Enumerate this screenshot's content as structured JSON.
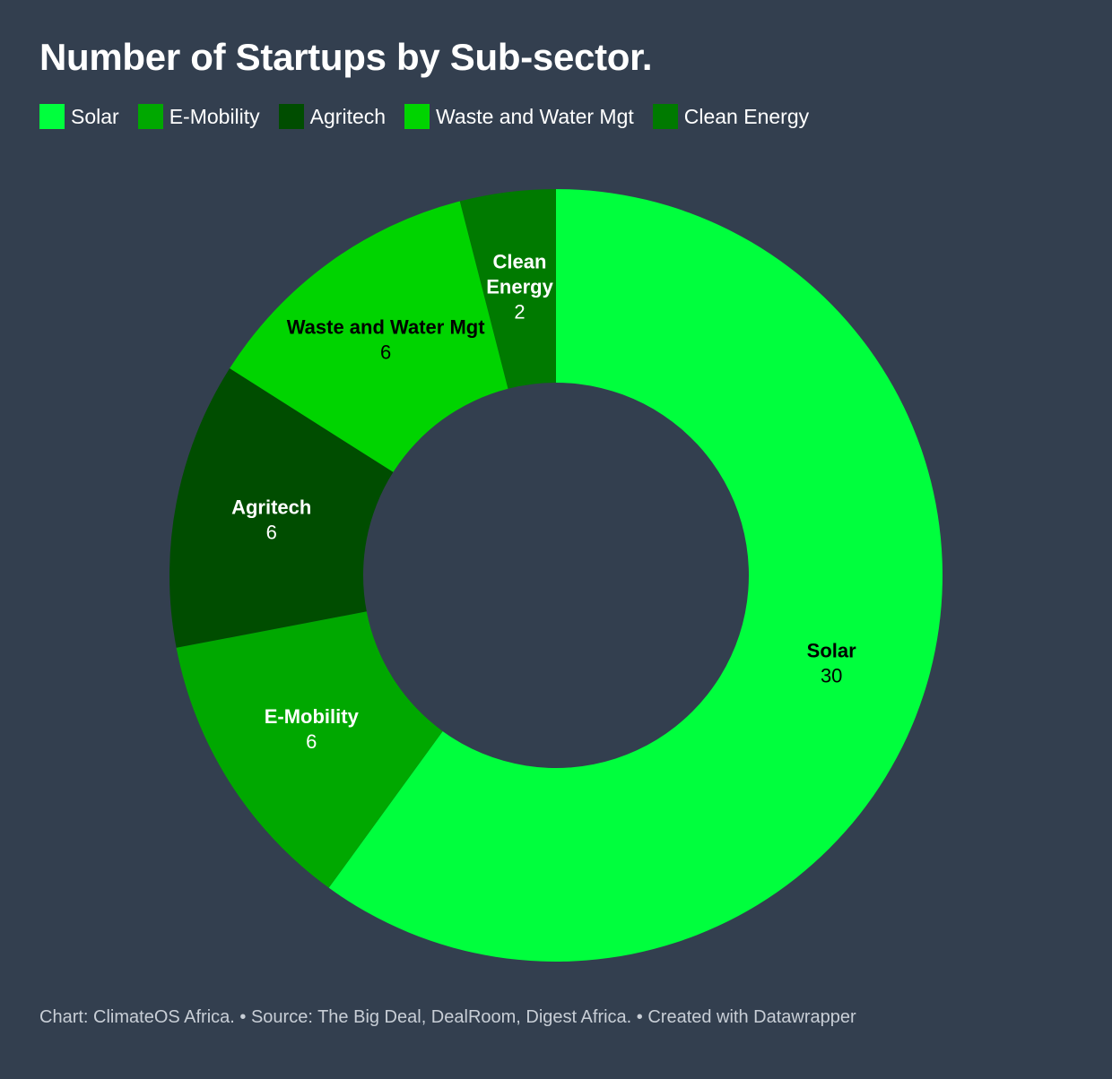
{
  "title": "Number of Startups by Sub-sector.",
  "legend": [
    {
      "label": "Solar",
      "color": "#00ff3d"
    },
    {
      "label": "E-Mobility",
      "color": "#00a800"
    },
    {
      "label": "Agritech",
      "color": "#004d00"
    },
    {
      "label": "Waste and Water Mgt",
      "color": "#00d400"
    },
    {
      "label": "Clean Energy",
      "color": "#007a00"
    }
  ],
  "chart_data": {
    "type": "pie",
    "title": "Number of Startups by Sub-sector.",
    "categories": [
      "Solar",
      "E-Mobility",
      "Agritech",
      "Waste and Water Mgt",
      "Clean Energy"
    ],
    "values": [
      30,
      6,
      6,
      6,
      2
    ],
    "colors": [
      "#00ff3d",
      "#00a800",
      "#004d00",
      "#00d400",
      "#007a00"
    ],
    "label_text_colors": [
      "#000000",
      "#ffffff",
      "#ffffff",
      "#000000",
      "#ffffff"
    ],
    "slice_labels": [
      {
        "name_lines": [
          "Solar"
        ],
        "value": "30"
      },
      {
        "name_lines": [
          "E-Mobility"
        ],
        "value": "6"
      },
      {
        "name_lines": [
          "Agritech"
        ],
        "value": "6"
      },
      {
        "name_lines": [
          "Waste and Water Mgt"
        ],
        "value": "6"
      },
      {
        "name_lines": [
          "Clean",
          "Energy"
        ],
        "value": "2"
      }
    ],
    "donut": true,
    "legend_position": "top-left",
    "background_color": "#333f4f"
  },
  "footer": {
    "text": "Chart: ClimateOS Africa. • Source: The Big Deal, DealRoom, Digest Africa. • Created with Datawrapper"
  }
}
